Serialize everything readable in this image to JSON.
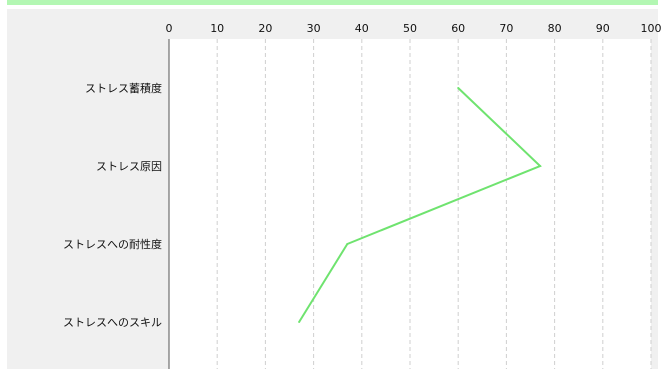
{
  "colors": {
    "panel": "#f0f0f0",
    "plot": "#ffffff",
    "line": "#6fe36f",
    "grid": "#cfcfcf",
    "axis": "#555555",
    "top_bar": "#b3f7b3"
  },
  "chart_data": {
    "type": "line",
    "orientation": "horizontal",
    "title": "",
    "xlabel": "",
    "ylabel": "",
    "xlim": [
      0,
      100
    ],
    "x_ticks": [
      "0",
      "10",
      "20",
      "30",
      "40",
      "50",
      "60",
      "70",
      "80",
      "90",
      "100"
    ],
    "categories": [
      "ストレス蓄積度",
      "ストレス原因",
      "ストレスへの耐性度",
      "ストレスへのスキル"
    ],
    "values": [
      60,
      77,
      37,
      27
    ],
    "grid": "vertical-dashed",
    "legend": "none"
  }
}
